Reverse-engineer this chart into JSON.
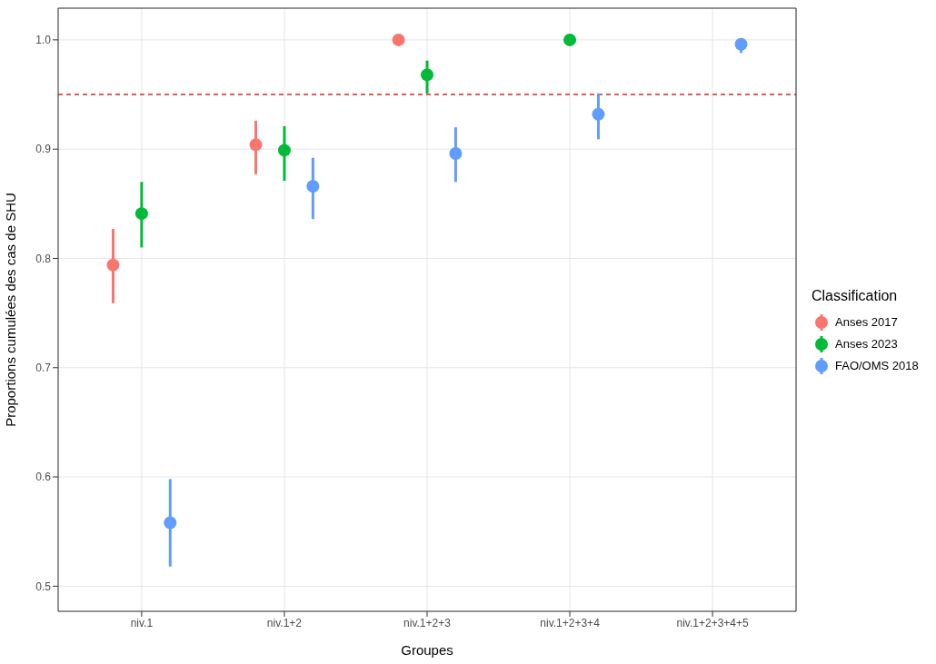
{
  "chart_data": {
    "type": "scatter",
    "categories": [
      "niv.1",
      "niv.1+2",
      "niv.1+2+3",
      "niv.1+2+3+4",
      "niv.1+2+3+4+5"
    ],
    "xlabel": "Groupes",
    "ylabel": "Proportions cumulées des cas de SHU",
    "legend_title": "Classification",
    "series": [
      {
        "name": "Anses 2017",
        "color": "#f8766d",
        "values": [
          0.794,
          0.904,
          1.0,
          null,
          null
        ],
        "errors": [
          [
            0.759,
            0.827
          ],
          [
            0.877,
            0.926
          ],
          null,
          null,
          null
        ]
      },
      {
        "name": "Anses 2023",
        "color": "#00ba38",
        "values": [
          0.841,
          0.899,
          0.968,
          1.0,
          null
        ],
        "errors": [
          [
            0.81,
            0.87
          ],
          [
            0.871,
            0.921
          ],
          [
            0.951,
            0.981
          ],
          null,
          null
        ]
      },
      {
        "name": "FAO/OMS 2018",
        "color": "#619cff",
        "values": [
          0.558,
          0.866,
          0.896,
          0.932,
          0.996
        ],
        "errors": [
          [
            0.518,
            0.598
          ],
          [
            0.836,
            0.892
          ],
          [
            0.87,
            0.92
          ],
          [
            0.909,
            0.951
          ],
          [
            0.988,
            1.0
          ]
        ]
      }
    ],
    "ylim": [
      0.477,
      1.029
    ],
    "yticks": [
      0.5,
      0.6,
      0.7,
      0.8,
      0.9,
      {
        "value": 1,
        "label": "1.0"
      }
    ],
    "ref_lines": [
      {
        "axis": "y",
        "value": 0.95,
        "color": "#d62728",
        "line_style": "dashed"
      }
    ],
    "grid": true,
    "legend": "right",
    "marker": "circle"
  }
}
